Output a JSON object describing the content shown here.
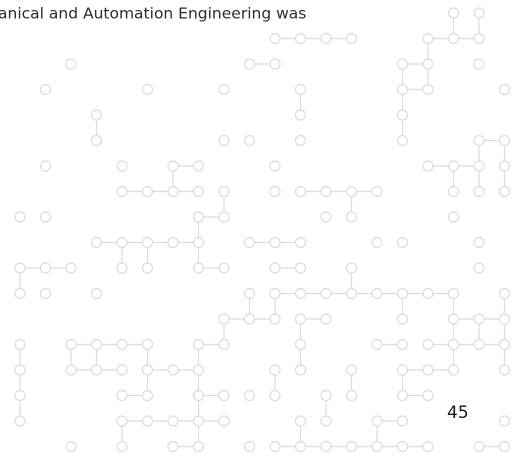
{
  "body_text": "anical and Automation Engineering was",
  "page_number": "45"
}
